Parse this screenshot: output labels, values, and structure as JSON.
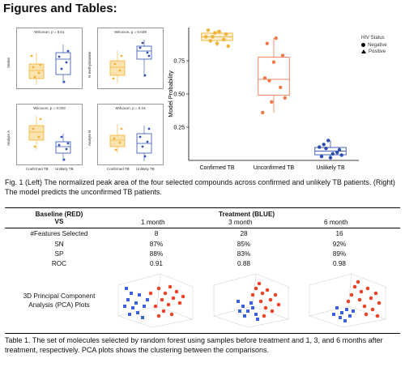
{
  "header": {
    "title": "Figures and Tables:"
  },
  "figure1": {
    "mini_charts": [
      {
        "title": "Wilcoxon, p = 0.01",
        "ylabel": "Serine"
      },
      {
        "title": "Wilcoxon, p = 0.029",
        "ylabel": "N-methylalanine"
      },
      {
        "title": "Wilcoxon, p = 0.002",
        "ylabel": "Analyte A"
      },
      {
        "title": "Wilcoxon, p = 0.16",
        "ylabel": "Analyte B"
      }
    ],
    "mini_xlabels": [
      "Confirmed TB",
      "Unlikely TB"
    ],
    "right_chart": {
      "ylabel": "Model Probability",
      "categories": [
        "Confirmed TB",
        "Unconfirmed TB",
        "Unlikely TB"
      ],
      "yticks": [
        "0.75",
        "0.50",
        "0.25"
      ],
      "legend_title": "HIV Status",
      "legend_items": [
        "Negative",
        "Positive"
      ]
    },
    "caption": "Fig. 1 (Left) The normalized peak area of the four selected compounds across confirmed and unlikely TB patients. (Right) The model predicts the unconfirmed TB patients."
  },
  "chart_data": {
    "type": "box",
    "title": "",
    "ylabel": "Model Probability",
    "ylim": [
      0,
      1
    ],
    "categories": [
      "Confirmed TB",
      "Unconfirmed TB",
      "Unlikely TB"
    ],
    "series": [
      {
        "values": [
          0.93,
          0.96,
          0.91,
          0.98,
          0.88,
          0.95,
          0.9,
          0.97,
          0.86,
          0.93
        ]
      },
      {
        "values": [
          0.36,
          0.44,
          0.55,
          0.62,
          0.74,
          0.79,
          0.88,
          0.92,
          0.47,
          0.6
        ]
      },
      {
        "values": [
          0.1,
          0.15,
          0.06,
          0.03,
          0.02,
          0.08,
          0.12,
          0.05,
          0.04,
          0.09
        ]
      }
    ],
    "colors": [
      "#f2b233",
      "#f07a4e",
      "#2d4fb3"
    ]
  },
  "table": {
    "col_header_left": [
      "Baseline (RED)",
      "VS"
    ],
    "col_header_group": "Treatment (BLUE)",
    "col_headers": [
      "1 month",
      "3 month",
      "6 month"
    ],
    "rows": [
      {
        "label": "#Features Selected",
        "values": [
          "8",
          "28",
          "16"
        ]
      },
      {
        "label": "SN",
        "values": [
          "87%",
          "85%",
          "92%"
        ]
      },
      {
        "label": "SP",
        "values": [
          "88%",
          "83%",
          "89%"
        ]
      },
      {
        "label": "ROC",
        "values": [
          "0.91",
          "0.88",
          "0.98"
        ]
      }
    ],
    "pca_label": "3D Principal Component Analysis (PCA) Plots",
    "caption": "Table 1. The set of molecules selected by random forest using samples before treatment and 1, 3, and 6 months after treatment, respectively. PCA plots shows the clustering between the comparisons."
  }
}
